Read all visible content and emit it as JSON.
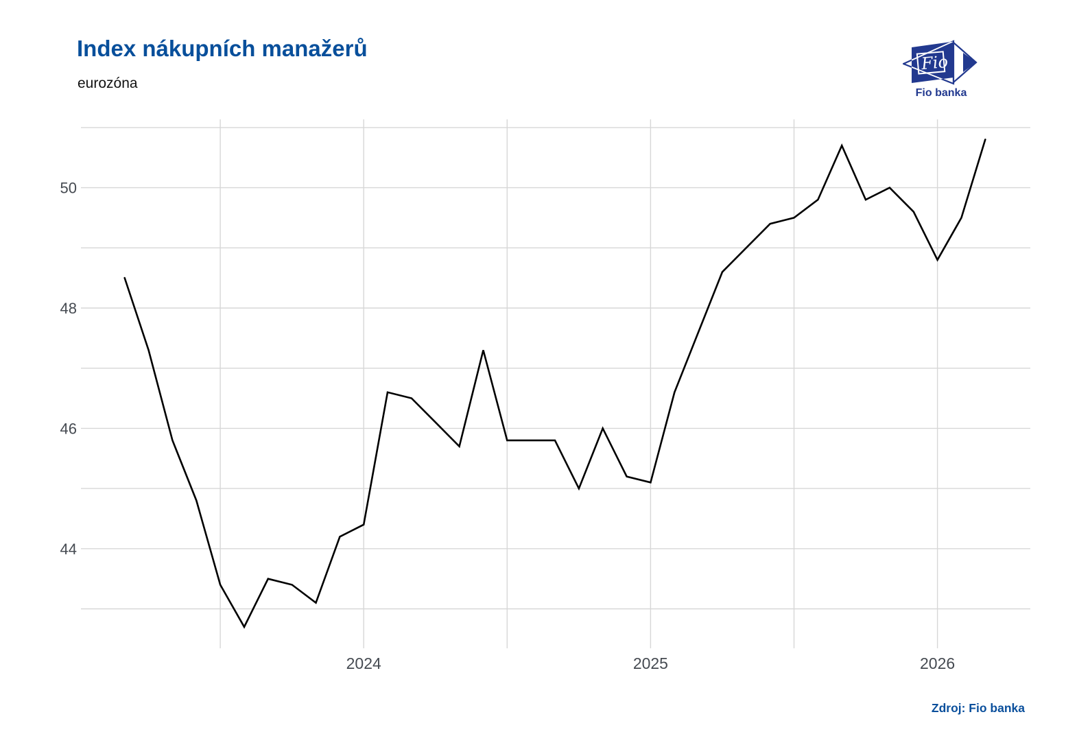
{
  "header": {
    "title": "Index nákupních manažerů",
    "subtitle": "eurozóna"
  },
  "logo": {
    "brand": "Fio",
    "caption": "Fio banka"
  },
  "source": {
    "label": "Zdroj: Fio banka"
  },
  "colors": {
    "brand_blue": "#084f9b",
    "logo_navy": "#22398f",
    "line": "#000000",
    "grid": "#d7d7d7",
    "tick_label": "#454a51"
  },
  "chart_data": {
    "type": "line",
    "title": "Index nákupních manažerů",
    "subtitle": "eurozóna",
    "x": [
      "2023-02",
      "2023-03",
      "2023-04",
      "2023-05",
      "2023-06",
      "2023-07",
      "2023-08",
      "2023-09",
      "2023-10",
      "2023-11",
      "2023-12",
      "2024-01",
      "2024-02",
      "2024-03",
      "2024-04",
      "2024-05",
      "2024-06",
      "2024-07",
      "2024-08",
      "2024-09",
      "2024-10",
      "2024-11",
      "2024-12",
      "2025-01",
      "2025-02",
      "2025-03",
      "2025-04",
      "2025-05",
      "2025-06",
      "2025-07",
      "2025-08",
      "2025-09",
      "2025-10",
      "2025-11",
      "2025-12",
      "2026-01",
      "2026-02"
    ],
    "values": [
      48.5,
      47.3,
      45.8,
      44.8,
      43.4,
      42.7,
      43.5,
      43.4,
      43.1,
      44.2,
      44.4,
      46.6,
      46.5,
      46.1,
      45.7,
      47.3,
      45.8,
      45.8,
      45.8,
      45.0,
      46.0,
      45.2,
      45.1,
      46.6,
      47.6,
      48.6,
      49.0,
      49.4,
      49.5,
      49.8,
      50.7,
      49.8,
      50.0,
      49.6,
      48.8,
      49.5,
      50.8
    ],
    "ylim": [
      42.3,
      51.1
    ],
    "ygrid_values": [
      43,
      44,
      45,
      46,
      47,
      48,
      49,
      50,
      51
    ],
    "yticks_labeled": [
      44,
      46,
      48,
      50
    ],
    "xgrid_months": [
      "2023-07",
      "2024-01",
      "2024-07",
      "2025-01",
      "2025-07",
      "2026-01"
    ],
    "xticks": [
      {
        "label": "2024",
        "month": "2024-01"
      },
      {
        "label": "2025",
        "month": "2025-01"
      },
      {
        "label": "2026",
        "month": "2026-01"
      }
    ],
    "grid": true,
    "legend": "none",
    "line_color": "#000000"
  }
}
